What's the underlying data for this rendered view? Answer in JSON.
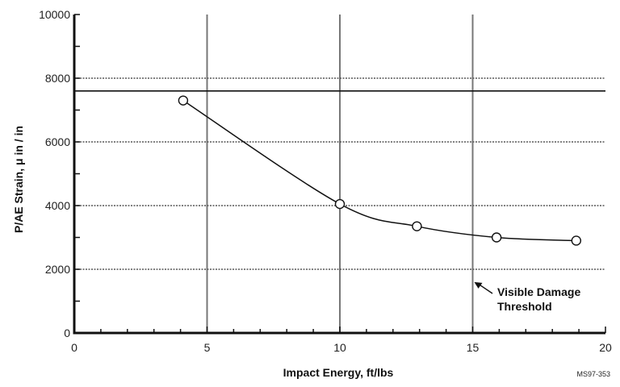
{
  "chart_data": {
    "type": "line",
    "title": "",
    "xlabel": "Impact Energy, ft/lbs",
    "ylabel": "P/AE Strain, μ in / in",
    "xlim": [
      0,
      20
    ],
    "ylim": [
      0,
      10000
    ],
    "x_ticks": [
      "0",
      "5",
      "10",
      "15",
      "20"
    ],
    "y_ticks": [
      "0",
      "2000",
      "4000",
      "6000",
      "8000",
      "10000"
    ],
    "grid": "vertical solid at 5, 10, 15; horizontal dashed at 2000, 4000, 6000, 8000",
    "series": [
      {
        "marker": "open-circle",
        "points": [
          {
            "x": 4.1,
            "y": 7300
          },
          {
            "x": 10.0,
            "y": 4050
          },
          {
            "x": 12.9,
            "y": 3350
          },
          {
            "x": 15.9,
            "y": 3000
          },
          {
            "x": 18.9,
            "y": 2900
          }
        ]
      }
    ],
    "reference_lines": [
      {
        "axis": "y",
        "value": 7600,
        "style": "solid"
      }
    ],
    "annotations": [
      {
        "lines": [
          "Visible Damage",
          "Threshold"
        ],
        "arrow_to": {
          "x": 15.0,
          "y": 1700
        }
      }
    ],
    "figure_code": "MS97-353"
  }
}
